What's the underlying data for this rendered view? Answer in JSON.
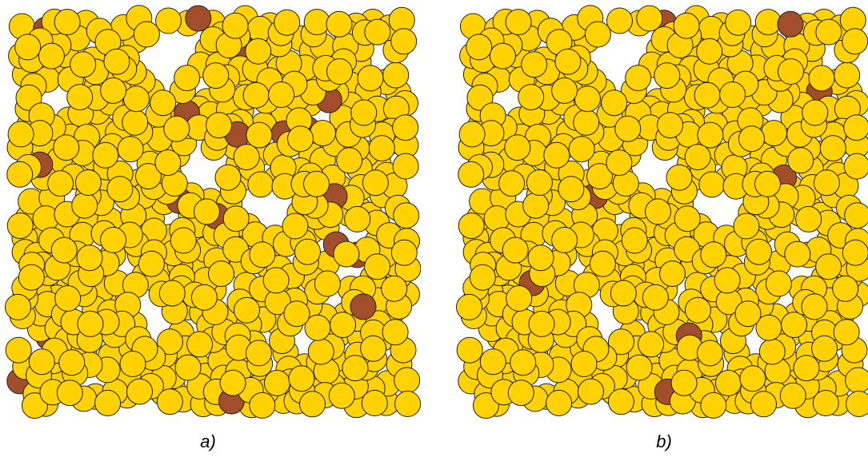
{
  "figure": {
    "colors": {
      "particle_fill": "#FFD200",
      "impurity_fill": "#A24E2A",
      "outline": "#222222",
      "background": "#FFFFFF"
    },
    "panels": [
      {
        "id": "a",
        "caption": "a)",
        "impurity_count": 18
      },
      {
        "id": "b",
        "caption": "b)",
        "impurity_count": 8
      }
    ]
  }
}
